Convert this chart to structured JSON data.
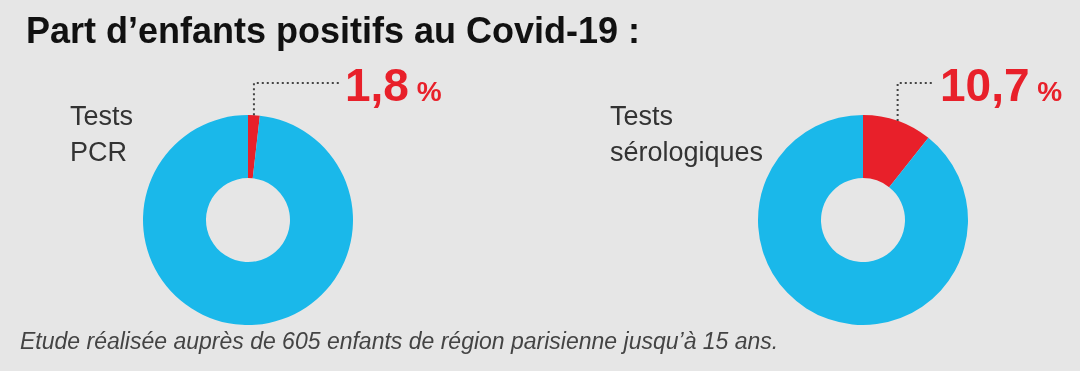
{
  "chart_data": [
    {
      "type": "donut",
      "title": "Part d’enfants positifs au Covid-19 :",
      "subtitle": "Tests PCR",
      "categories": [
        null,
        null
      ],
      "values": [
        1.8,
        98.2
      ],
      "colors": [
        "#e8202a",
        "#1ab8ea"
      ],
      "value_labels": [
        "1,8 %",
        null
      ],
      "annotations": [
        "Etude réalisée auprès de 605 enfants de région parisienne jusqu’à 15 ans."
      ]
    },
    {
      "type": "donut",
      "subtitle": "Tests sérologiques",
      "categories": [
        null,
        null
      ],
      "values": [
        10.7,
        89.3
      ],
      "colors": [
        "#e8202a",
        "#1ab8ea"
      ],
      "value_labels": [
        "10,7 %",
        null
      ]
    }
  ]
}
